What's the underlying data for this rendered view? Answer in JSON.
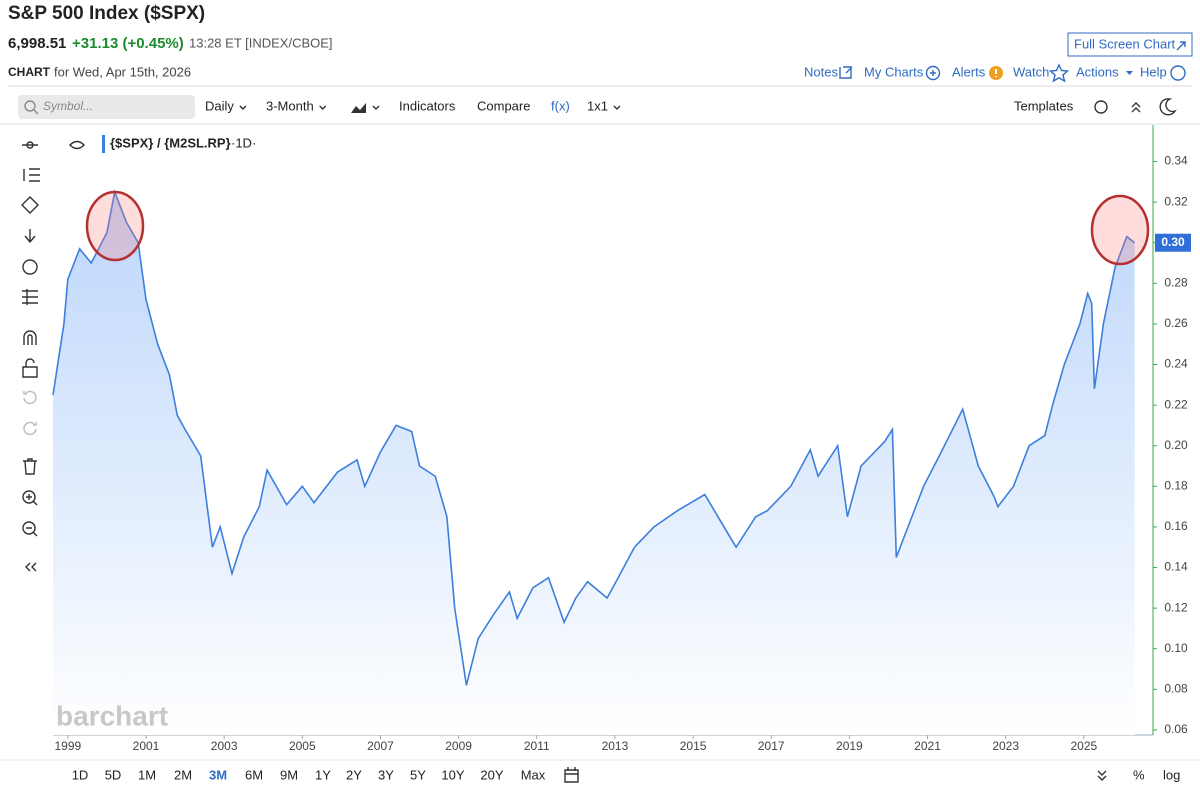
{
  "header": {
    "title": "S&P 500 Index ($SPX)",
    "price": "6,998.51",
    "change": "+31.13 (+0.45%)",
    "meta": "13:28 ET [INDEX/CBOE]",
    "fullscreen_button": "Full Screen Chart"
  },
  "subheader": {
    "chart_label": "CHART",
    "date": "for Wed, Apr 15th, 2026",
    "menu": [
      "Notes",
      "My Charts",
      "Alerts",
      "Watch",
      "Actions",
      "Help"
    ]
  },
  "toolbar": {
    "symbol_placeholder": "Symbol...",
    "items": [
      "Daily",
      "3-Month",
      "Indicators",
      "Compare",
      "f(x)",
      "1x1"
    ],
    "templates": "Templates"
  },
  "chart_data": {
    "type": "line",
    "interval": "·1D·",
    "watermark": "barchart",
    "series": [
      {
        "name": "{$SPX} / {M2SL.RP}",
        "color": "#3d7fdc",
        "x": [
          1998.62,
          1998.9,
          1999.0,
          1999.3,
          1999.6,
          2000.0,
          2000.2,
          2000.5,
          2000.8,
          2001.0,
          2001.3,
          2001.6,
          2001.8,
          2002.0,
          2002.4,
          2002.7,
          2002.9,
          2003.2,
          2003.5,
          2003.9,
          2004.1,
          2004.6,
          2005.0,
          2005.3,
          2005.9,
          2006.4,
          2006.6,
          2007.0,
          2007.4,
          2007.8,
          2008.0,
          2008.4,
          2008.7,
          2008.9,
          2009.2,
          2009.5,
          2009.9,
          2010.3,
          2010.5,
          2010.9,
          2011.3,
          2011.7,
          2012.0,
          2012.3,
          2012.8,
          2013.0,
          2013.5,
          2014.0,
          2014.6,
          2015.3,
          2015.7,
          2016.1,
          2016.6,
          2016.9,
          2017.5,
          2018.0,
          2018.2,
          2018.7,
          2018.95,
          2019.3,
          2019.9,
          2020.1,
          2020.2,
          2020.5,
          2020.9,
          2021.3,
          2021.9,
          2022.3,
          2022.7,
          2022.8,
          2023.2,
          2023.6,
          2024.0,
          2024.2,
          2024.5,
          2024.9,
          2025.1,
          2025.2,
          2025.27,
          2025.5,
          2025.8,
          2026.1,
          2026.3
        ],
        "values": [
          0.225,
          0.26,
          0.282,
          0.297,
          0.29,
          0.305,
          0.325,
          0.31,
          0.3,
          0.272,
          0.25,
          0.235,
          0.215,
          0.208,
          0.195,
          0.15,
          0.16,
          0.137,
          0.155,
          0.17,
          0.188,
          0.171,
          0.18,
          0.172,
          0.187,
          0.193,
          0.18,
          0.197,
          0.21,
          0.207,
          0.19,
          0.185,
          0.165,
          0.12,
          0.082,
          0.105,
          0.117,
          0.128,
          0.115,
          0.13,
          0.135,
          0.113,
          0.125,
          0.133,
          0.125,
          0.132,
          0.15,
          0.16,
          0.168,
          0.176,
          0.163,
          0.15,
          0.165,
          0.168,
          0.18,
          0.198,
          0.185,
          0.2,
          0.165,
          0.19,
          0.202,
          0.208,
          0.145,
          0.16,
          0.18,
          0.195,
          0.218,
          0.19,
          0.175,
          0.17,
          0.18,
          0.2,
          0.205,
          0.22,
          0.24,
          0.26,
          0.275,
          0.27,
          0.228,
          0.26,
          0.288,
          0.303,
          0.3
        ]
      }
    ],
    "xlim": [
      1998.62,
      2026.77
    ],
    "ylim": [
      0.0575,
      0.358
    ],
    "xticks": [
      1999,
      2001,
      2003,
      2005,
      2007,
      2009,
      2011,
      2013,
      2015,
      2017,
      2019,
      2021,
      2023,
      2025
    ],
    "yticks": [
      0.06,
      0.08,
      {
        "value": 0.1,
        "label": "0.10"
      },
      0.12,
      0.14,
      0.16,
      0.18,
      {
        "value": 0.2,
        "label": "0.20"
      },
      0.22,
      0.24,
      0.26,
      0.28,
      {
        "value": 0.3,
        "label": "0.30"
      },
      0.32,
      0.34
    ],
    "current_marker": {
      "value": 0.3,
      "label": "0.30"
    },
    "grid": false
  },
  "ranges": [
    "1D",
    "5D",
    "1M",
    "2M",
    "3M",
    "6M",
    "9M",
    "1Y",
    "2Y",
    "3Y",
    "5Y",
    "10Y",
    "20Y",
    "Max"
  ],
  "active_range_index": 4,
  "footer_right": [
    "%",
    "log"
  ]
}
